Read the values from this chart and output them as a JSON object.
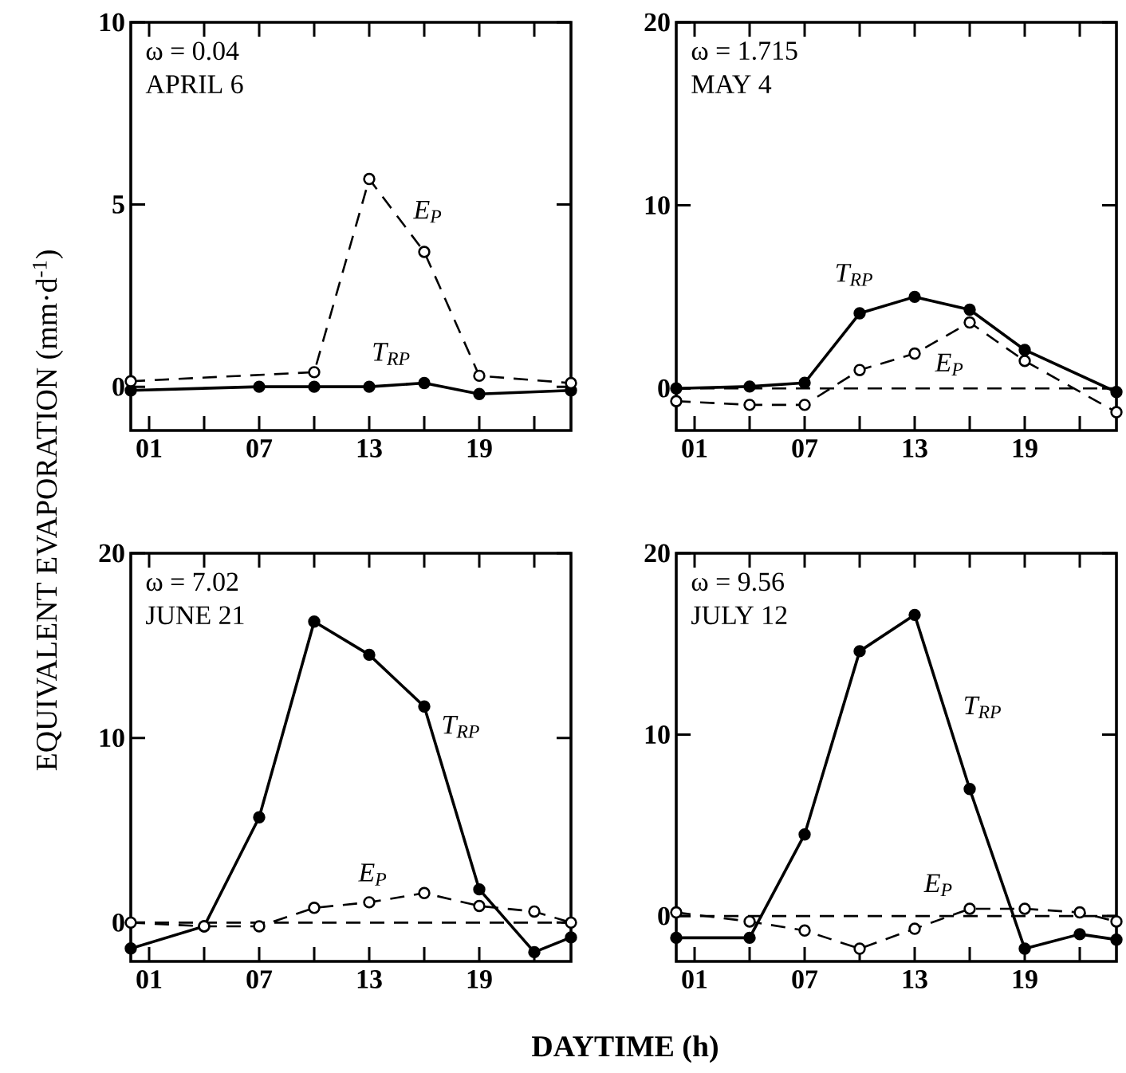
{
  "chart_data": [
    {
      "type": "line",
      "ylabel": "EQUIVALENT EVAPORATION (mm·d$^{-1}$)",
      "xlim": [
        0,
        24
      ],
      "xticks": [
        {
          "value": 1,
          "label": "01"
        },
        {
          "value": 4,
          "label": null
        },
        {
          "value": 7,
          "label": "07"
        },
        {
          "value": 10,
          "label": null
        },
        {
          "value": 13,
          "label": "13"
        },
        {
          "value": 16,
          "label": null
        },
        {
          "value": 19,
          "label": "19"
        },
        {
          "value": 22,
          "label": null
        }
      ],
      "ylim": [
        -1.2,
        10
      ],
      "yticks": [
        0,
        5,
        10
      ],
      "series": [
        {
          "color": "#000000",
          "line_style": "solid",
          "marker": "circle",
          "x": [
            0,
            7,
            10,
            13,
            16,
            19,
            24
          ],
          "values": [
            -0.1,
            0,
            0,
            0,
            0.1,
            -0.2,
            -0.1
          ]
        },
        {
          "color": "#000000",
          "line_style": "dashed",
          "marker": "circle",
          "x": [
            0,
            10,
            13,
            16,
            19,
            24
          ],
          "values": [
            0.15,
            0.4,
            5.7,
            3.7,
            0.3,
            0.1
          ]
        }
      ],
      "annotations": [
        "ω = 0.04",
        "APRIL 6",
        "T$_{RP}$",
        "E$_{P}$"
      ]
    },
    {
      "type": "line",
      "xlim": [
        0,
        24
      ],
      "xticks": [
        {
          "value": 1,
          "label": "01"
        },
        {
          "value": 4,
          "label": null
        },
        {
          "value": 7,
          "label": "07"
        },
        {
          "value": 10,
          "label": null
        },
        {
          "value": 13,
          "label": "13"
        },
        {
          "value": 16,
          "label": null
        },
        {
          "value": 19,
          "label": "19"
        },
        {
          "value": 22,
          "label": null
        }
      ],
      "ylim": [
        -2.3,
        20
      ],
      "yticks": [
        0,
        10,
        20
      ],
      "series": [
        {
          "color": "#000000",
          "line_style": "solid",
          "marker": "circle",
          "x": [
            0,
            4,
            7,
            10,
            13,
            16,
            19,
            24
          ],
          "values": [
            0,
            0.1,
            0.3,
            4.1,
            5.0,
            4.3,
            2.1,
            -0.2
          ]
        },
        {
          "color": "#000000",
          "line_style": "dashed",
          "marker": "circle",
          "x": [
            0,
            4,
            7,
            10,
            13,
            16,
            19,
            24
          ],
          "values": [
            -0.7,
            -0.9,
            -0.9,
            1.0,
            1.9,
            3.6,
            1.5,
            -1.3
          ]
        }
      ],
      "ref_lines": [
        {
          "axis": "y",
          "value": 0,
          "line_style": "dashed"
        }
      ],
      "annotations": [
        "ω = 1.715",
        "MAY 4",
        "T$_{RP}$",
        "E$_{P}$"
      ]
    },
    {
      "type": "line",
      "xlabel": "DAYTIME (h)",
      "xlim": [
        0,
        24
      ],
      "xticks": [
        {
          "value": 1,
          "label": "01"
        },
        {
          "value": 4,
          "label": null
        },
        {
          "value": 7,
          "label": "07"
        },
        {
          "value": 10,
          "label": null
        },
        {
          "value": 13,
          "label": "13"
        },
        {
          "value": 16,
          "label": null
        },
        {
          "value": 19,
          "label": "19"
        },
        {
          "value": 22,
          "label": null
        }
      ],
      "ylim": [
        -2.1,
        20
      ],
      "yticks": [
        0,
        10,
        20
      ],
      "series": [
        {
          "color": "#000000",
          "line_style": "solid",
          "marker": "circle",
          "x": [
            0,
            4,
            7,
            10,
            13,
            16,
            19,
            22,
            24
          ],
          "values": [
            -1.4,
            -0.2,
            5.7,
            16.3,
            14.5,
            11.7,
            1.8,
            -1.6,
            -0.8
          ]
        },
        {
          "color": "#000000",
          "line_style": "dashed",
          "marker": "circle",
          "x": [
            0,
            4,
            7,
            10,
            13,
            16,
            19,
            22,
            24
          ],
          "values": [
            0,
            -0.2,
            -0.2,
            0.8,
            1.1,
            1.6,
            0.9,
            0.6,
            0
          ]
        }
      ],
      "ref_lines": [
        {
          "axis": "y",
          "value": 0,
          "line_style": "dashed"
        }
      ],
      "annotations": [
        "ω = 7.02",
        "JUNE 21",
        "T$_{RP}$",
        "E$_{P}$"
      ]
    },
    {
      "type": "line",
      "xlim": [
        0,
        24
      ],
      "xticks": [
        {
          "value": 1,
          "label": "01"
        },
        {
          "value": 4,
          "label": null
        },
        {
          "value": 7,
          "label": "07"
        },
        {
          "value": 10,
          "label": null
        },
        {
          "value": 13,
          "label": "13"
        },
        {
          "value": 16,
          "label": null
        },
        {
          "value": 19,
          "label": "19"
        },
        {
          "value": 22,
          "label": null
        }
      ],
      "ylim": [
        -2.5,
        20
      ],
      "yticks": [
        0,
        10,
        20
      ],
      "series": [
        {
          "color": "#000000",
          "line_style": "solid",
          "marker": "circle",
          "x": [
            0,
            4,
            7,
            10,
            13,
            16,
            19,
            22,
            24
          ],
          "values": [
            -1.2,
            -1.2,
            4.5,
            14.6,
            16.6,
            7.0,
            -1.8,
            -1.0,
            -1.3
          ]
        },
        {
          "color": "#000000",
          "line_style": "dashed",
          "marker": "circle",
          "x": [
            0,
            4,
            7,
            10,
            13,
            16,
            19,
            22,
            24
          ],
          "values": [
            0.2,
            -0.3,
            -0.8,
            -1.8,
            -0.7,
            0.4,
            0.4,
            0.2,
            -0.3
          ]
        }
      ],
      "ref_lines": [
        {
          "axis": "y",
          "value": 0,
          "line_style": "dashed"
        }
      ],
      "annotations": [
        "ω = 9.56",
        "JULY 12",
        "T$_{RP}$",
        "E$_{P}$"
      ]
    }
  ]
}
